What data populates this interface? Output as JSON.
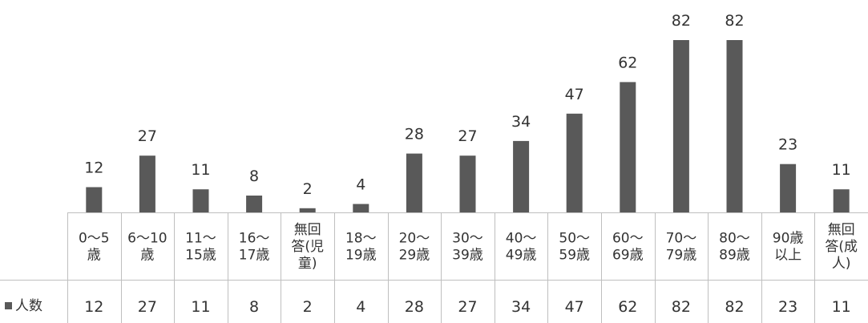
{
  "chart_data": {
    "type": "bar",
    "categories": [
      "0〜5\n歳",
      "6〜10\n歳",
      "11〜\n15歳",
      "16〜\n17歳",
      "無回\n答(児\n童)",
      "18〜\n19歳",
      "20〜\n29歳",
      "30〜\n39歳",
      "40〜\n49歳",
      "50〜\n59歳",
      "60〜\n69歳",
      "70〜\n79歳",
      "80〜\n89歳",
      "90歳\n以上",
      "無回\n答(成\n人)"
    ],
    "series": [
      {
        "name": "人数",
        "values": [
          12,
          27,
          11,
          8,
          2,
          4,
          28,
          27,
          34,
          47,
          62,
          82,
          82,
          23,
          11
        ]
      }
    ],
    "title": "",
    "xlabel": "",
    "ylabel": "",
    "ylim": [
      0,
      82
    ],
    "grid": false,
    "legend": "data-table-left",
    "data_labels": true,
    "data_table": true,
    "colors": {
      "bar": "#595959",
      "text": "#333333",
      "lines": "#bfbfbf"
    }
  }
}
